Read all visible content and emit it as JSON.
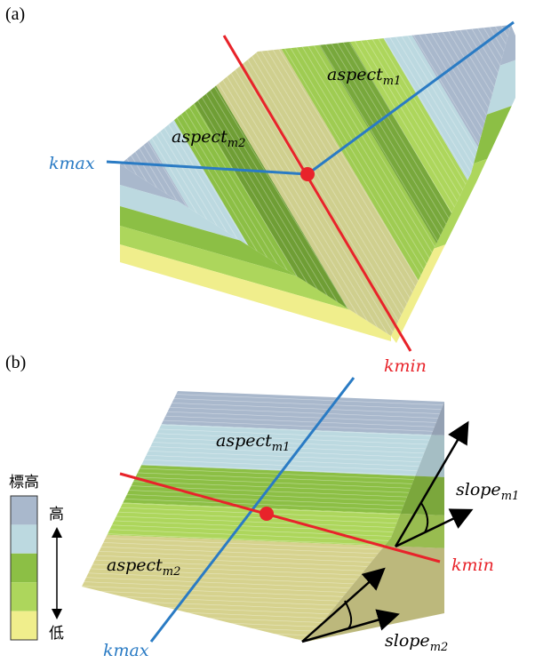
{
  "panel_a": {
    "label": "(a)",
    "kmax": "kmax",
    "kmin": "kmin",
    "aspect_m1": {
      "text": "aspect",
      "sub": "m1"
    },
    "aspect_m2": {
      "text": "aspect",
      "sub": "m2"
    }
  },
  "panel_b": {
    "label": "(b)",
    "kmax": "kmax",
    "kmin": "kmin",
    "aspect_m1": {
      "text": "aspect",
      "sub": "m1"
    },
    "aspect_m2": {
      "text": "aspect",
      "sub": "m2"
    },
    "slope_m1": {
      "text": "slope",
      "sub": "m1"
    },
    "slope_m2": {
      "text": "slope",
      "sub": "m2"
    }
  },
  "legend": {
    "title": "標高",
    "high": "高",
    "low": "低"
  }
}
